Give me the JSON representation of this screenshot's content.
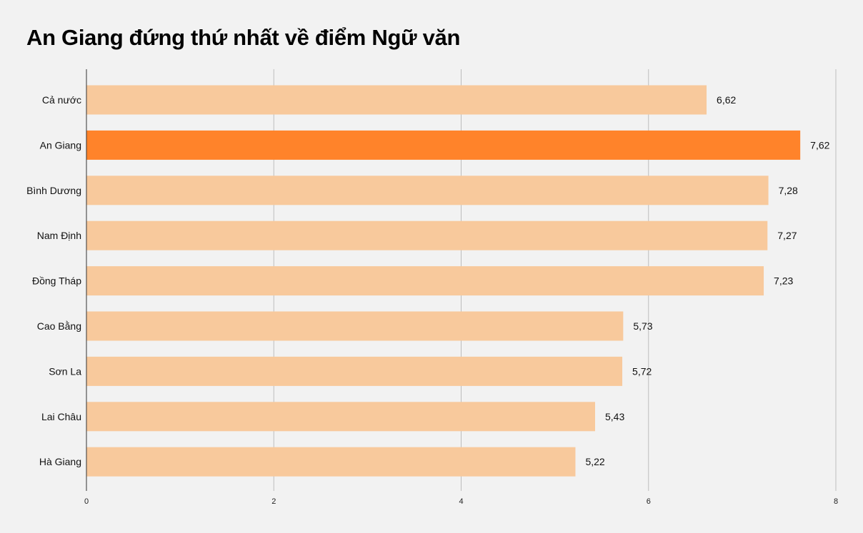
{
  "chart_data": {
    "type": "bar",
    "orientation": "horizontal",
    "title": "An Giang đứng thứ nhất về điểm Ngữ văn",
    "categories": [
      "Cả nước",
      "An Giang",
      "Bình Dương",
      "Nam Định",
      "Đồng Tháp",
      "Cao Bằng",
      "Sơn La",
      "Lai Châu",
      "Hà Giang"
    ],
    "values": [
      6.62,
      7.62,
      7.28,
      7.27,
      7.23,
      5.73,
      5.72,
      5.43,
      5.22
    ],
    "data_labels": [
      "6,62",
      "7,62",
      "7,28",
      "7,27",
      "7,23",
      "5,73",
      "5,72",
      "5,43",
      "5,22"
    ],
    "highlight_index": 1,
    "xlim": [
      0,
      8
    ],
    "xticks": [
      0,
      2,
      4,
      6,
      8
    ],
    "xtick_labels": [
      "0",
      "2",
      "4",
      "6",
      "8"
    ],
    "xlabel": "",
    "ylabel": "",
    "grid": true,
    "legend": "none",
    "colors": {
      "bar": "#f8c99c",
      "highlight": "#ff832a",
      "grid": "#bdbdbd",
      "axis": "#333333",
      "background": "#f2f2f2"
    }
  }
}
